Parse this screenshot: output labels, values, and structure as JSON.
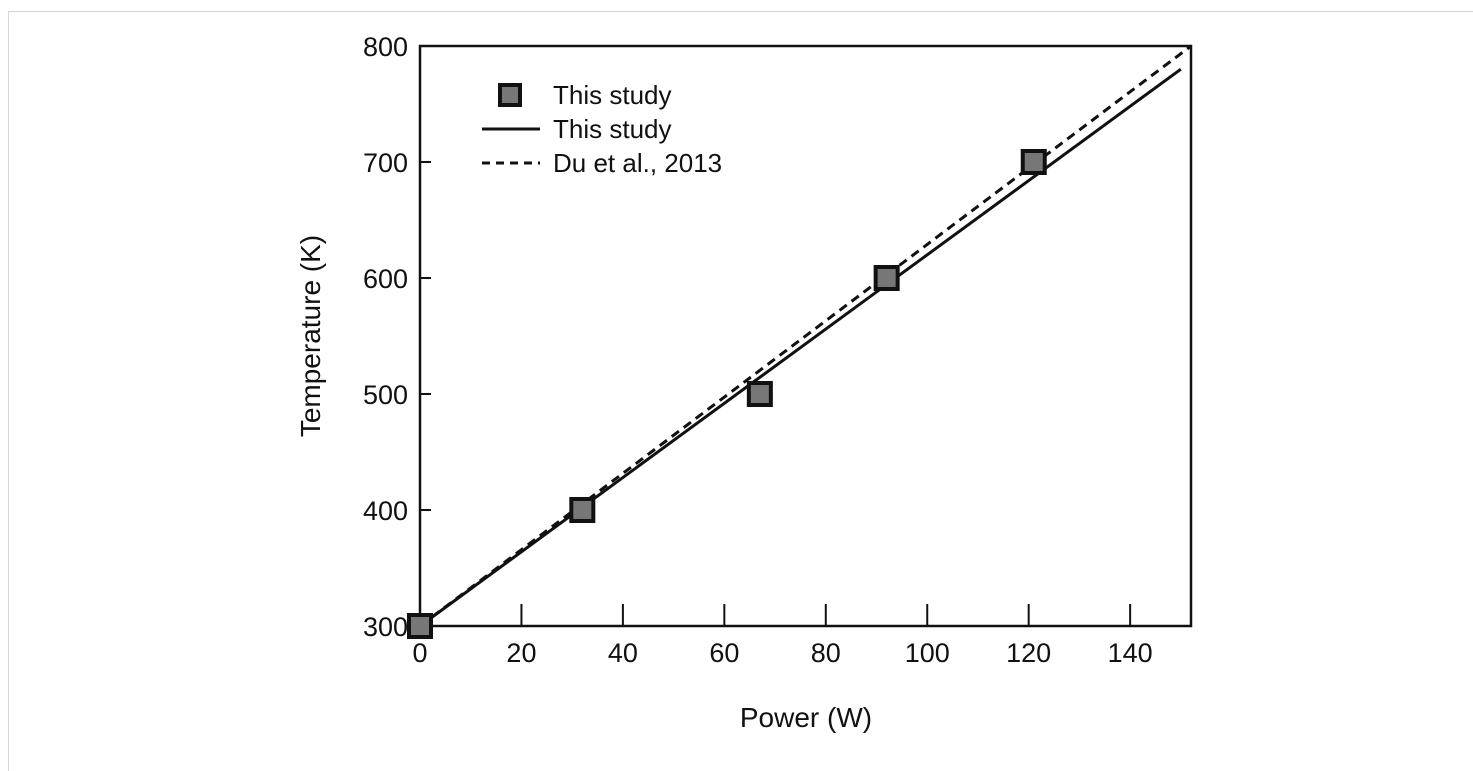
{
  "chart_data": {
    "type": "scatter",
    "xlabel": "Power (W)",
    "ylabel": "Temperature (K)",
    "xlim": [
      0,
      152
    ],
    "ylim": [
      300,
      800
    ],
    "xticks": [
      0,
      20,
      40,
      60,
      80,
      100,
      120,
      140
    ],
    "yticks": [
      300,
      400,
      500,
      600,
      700,
      800
    ],
    "grid": false,
    "legend_position": "top-left",
    "series": [
      {
        "name": "This study",
        "kind": "markers",
        "marker": "square",
        "color": "#777777",
        "edge_color": "#111111",
        "x": [
          0,
          32,
          67,
          92,
          121
        ],
        "y": [
          300,
          400,
          500,
          600,
          700
        ]
      },
      {
        "name": "This study",
        "kind": "line",
        "style": "solid",
        "color": "#111111",
        "x": [
          0,
          150
        ],
        "y": [
          300,
          780
        ]
      },
      {
        "name": "Du et al., 2013",
        "kind": "line",
        "style": "dashed",
        "color": "#111111",
        "x": [
          0,
          152
        ],
        "y": [
          300,
          800
        ]
      }
    ]
  }
}
